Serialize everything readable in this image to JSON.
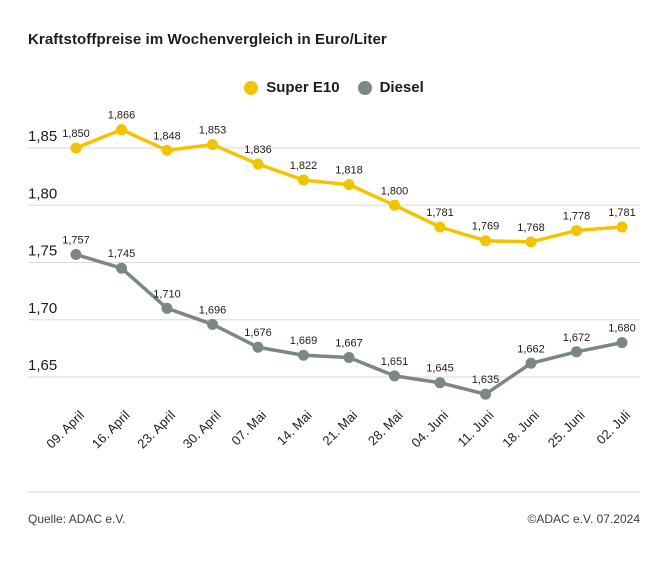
{
  "title": "Kraftstoffpreise im Wochenvergleich in Euro/Liter",
  "legend": [
    {
      "label": "Super E10",
      "color": "#F4C300"
    },
    {
      "label": "Diesel",
      "color": "#7A8782"
    }
  ],
  "chart_data": {
    "type": "line",
    "title": "Kraftstoffpreise im Wochenvergleich in Euro/Liter",
    "unit": "Euro/Liter",
    "grid": true,
    "legend_position": "top-center",
    "ylim": [
      1.62,
      1.88
    ],
    "categories": [
      "09. April",
      "16. April",
      "23. April",
      "30. April",
      "07. Mai",
      "14. Mai",
      "21. Mai",
      "28. Mai",
      "04. Juni",
      "11. Juni",
      "18. Juni",
      "25. Juni",
      "02. Juli"
    ],
    "y_ticks": [
      {
        "value": 1.85,
        "label": "1,85"
      },
      {
        "value": 1.8,
        "label": "1,80"
      },
      {
        "value": 1.75,
        "label": "1,75"
      },
      {
        "value": 1.7,
        "label": "1,70"
      },
      {
        "value": 1.65,
        "label": "1,65"
      }
    ],
    "series": [
      {
        "name": "Super E10",
        "color": "#F4C300",
        "values": [
          1.85,
          1.866,
          1.848,
          1.853,
          1.836,
          1.822,
          1.818,
          1.8,
          1.781,
          1.769,
          1.768,
          1.778,
          1.781
        ],
        "labels": [
          "1,850",
          "1,866",
          "1,848",
          "1,853",
          "1,836",
          "1,822",
          "1,818",
          "1,800",
          "1,781",
          "1,769",
          "1,768",
          "1,778",
          "1,781"
        ]
      },
      {
        "name": "Diesel",
        "color": "#7A8782",
        "values": [
          1.757,
          1.745,
          1.71,
          1.696,
          1.676,
          1.669,
          1.667,
          1.651,
          1.645,
          1.635,
          1.662,
          1.672,
          1.68
        ],
        "labels": [
          "1,757",
          "1,745",
          "1,710",
          "1,696",
          "1,676",
          "1,669",
          "1,667",
          "1,651",
          "1,645",
          "1,635",
          "1,662",
          "1,672",
          "1,680"
        ]
      }
    ]
  },
  "footer": {
    "source": "Quelle: ADAC e.V.",
    "copyright": "©ADAC e.V. 07.2024"
  },
  "colors": {
    "text": "#1d1d1b",
    "gridline": "#dadada",
    "footer_text": "#3e3e3d"
  }
}
